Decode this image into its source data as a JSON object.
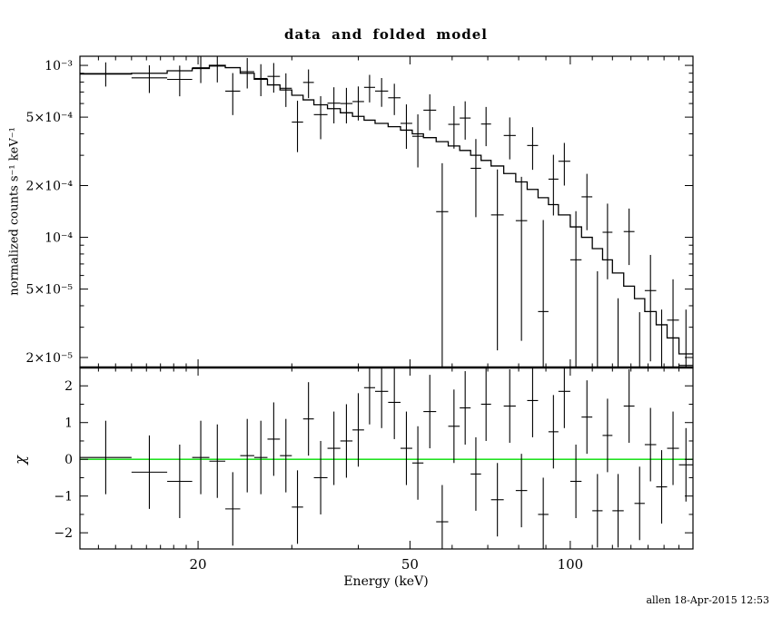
{
  "footer_note": "allen 18-Apr-2015 12:53",
  "colors": {
    "foreground": "#000000",
    "background": "#ffffff",
    "zero_line": "#00dd00"
  },
  "chart_data": {
    "type": "line",
    "title": "data and folded model",
    "xlabel": "Energy (keV)",
    "x_scale": "log",
    "xlim": [
      12,
      170
    ],
    "x_major_ticks": [
      20,
      50,
      100
    ],
    "x_major_labels": [
      "20",
      "50",
      "100"
    ],
    "x_minor_ticks": [
      13,
      14,
      15,
      16,
      17,
      18,
      19,
      30,
      40,
      60,
      70,
      80,
      90,
      110,
      120,
      130,
      140,
      150,
      160
    ],
    "top_panel": {
      "ylabel": "normalized counts s⁻¹ keV⁻¹",
      "y_scale": "log",
      "ylim": [
        1.75e-05,
        0.00113
      ],
      "y_major_ticks": [
        0.001,
        0.0005,
        0.0002,
        0.0001,
        5e-05,
        2e-05
      ],
      "y_major_labels": [
        "10⁻³",
        "5×10⁻⁴",
        "2×10⁻⁴",
        "10⁻⁴",
        "5×10⁻⁵",
        "2×10⁻⁵"
      ],
      "y_minor_ticks": [
        0.0009,
        0.0008,
        0.0007,
        0.0006,
        0.0004,
        0.0003,
        9e-05,
        8e-05,
        7e-05,
        6e-05,
        4e-05,
        3e-05
      ]
    },
    "bottom_panel": {
      "ylabel": "χ",
      "y_scale": "linear",
      "ylim": [
        -2.44,
        2.5
      ],
      "y_major_ticks": [
        -2,
        -1,
        0,
        1,
        2
      ],
      "y_major_labels": [
        "−2",
        "−1",
        "0",
        "1",
        "2"
      ],
      "y_minor_ticks": [
        -1.5,
        -0.5,
        0.5,
        1.5
      ],
      "zero_line_color": "#00dd00",
      "chi_err": 1
    },
    "series": {
      "bin_edges": [
        12,
        15,
        17.5,
        19.5,
        21,
        22.5,
        24,
        25.5,
        27,
        28.5,
        30,
        31.5,
        33,
        35,
        37,
        39,
        41,
        43,
        45.5,
        48,
        50.5,
        53,
        56,
        59,
        62,
        65,
        68,
        71,
        75,
        79,
        83,
        87,
        91,
        95,
        100,
        105,
        110,
        115,
        120,
        126,
        132,
        138,
        145,
        152,
        160,
        170
      ],
      "model": [
        0.00089,
        0.0009,
        0.00093,
        0.00096,
        0.001,
        0.00097,
        0.0009,
        0.00083,
        0.00077,
        0.00072,
        0.00067,
        0.00063,
        0.00059,
        0.00056,
        0.00053,
        0.000505,
        0.00048,
        0.00046,
        0.00044,
        0.00042,
        0.0004,
        0.00038,
        0.00036,
        0.00034,
        0.00032,
        0.0003,
        0.00028,
        0.00026,
        0.000235,
        0.00021,
        0.00019,
        0.00017,
        0.000155,
        0.000135,
        0.000115,
        0.0001,
        8.6e-05,
        7.4e-05,
        6.2e-05,
        5.2e-05,
        4.4e-05,
        3.7e-05,
        3.1e-05,
        2.6e-05,
        2.1e-05
      ],
      "data": [
        0.000897,
        0.000846,
        0.000829,
        0.000969,
        0.00099,
        0.000708,
        0.000919,
        0.000839,
        0.000863,
        0.000736,
        0.000468,
        0.000796,
        0.000517,
        0.000603,
        0.0006,
        0.000616,
        0.000745,
        0.000709,
        0.000648,
        0.00046,
        0.000387,
        0.000549,
        0.000141,
        0.000454,
        0.000494,
        0.000252,
        0.000456,
        0.000135,
        0.000391,
        0.000125,
        0.000342,
        3.7e-05,
        0.000218,
        0.000277,
        7.4e-05,
        0.000172,
        7.5e-06,
        0.000107,
        2e-07,
        0.000108,
        2.7e-06,
        4.9e-05,
        1.1e-05,
        3.3e-05,
        1.8e-05
      ],
      "data_err": [
        0.000144,
        0.000155,
        0.000168,
        0.00018,
        0.000194,
        0.000194,
        0.000185,
        0.000177,
        0.000169,
        0.000163,
        0.000155,
        0.000151,
        0.000145,
        0.000143,
        0.00014,
        0.000138,
        0.000136,
        0.000135,
        0.000134,
        0.000133,
        0.000132,
        0.00013,
        0.000129,
        0.000126,
        0.000124,
        0.000121,
        0.000117,
        0.000113,
        0.000107,
        0.0001,
        9.5e-05,
        8.9e-05,
        8.4e-05,
        7.7e-05,
        6.8e-05,
        6.2e-05,
        5.6e-05,
        5e-05,
        4.4e-05,
        3.9e-05,
        3.4e-05,
        3e-05,
        2.7e-05,
        2.4e-05,
        2e-05
      ],
      "chi": [
        0.05,
        -0.35,
        -0.6,
        0.05,
        -0.05,
        -1.35,
        0.1,
        0.05,
        0.55,
        0.1,
        -1.3,
        1.1,
        -0.5,
        0.3,
        0.5,
        0.8,
        1.95,
        1.85,
        1.55,
        0.3,
        -0.1,
        1.3,
        -1.7,
        0.9,
        1.4,
        -0.4,
        1.5,
        -1.1,
        1.45,
        -0.85,
        1.6,
        -1.5,
        0.75,
        1.85,
        -0.6,
        1.15,
        -1.4,
        0.65,
        -1.4,
        1.45,
        -1.2,
        0.4,
        -0.75,
        0.3,
        -0.15
      ]
    }
  }
}
